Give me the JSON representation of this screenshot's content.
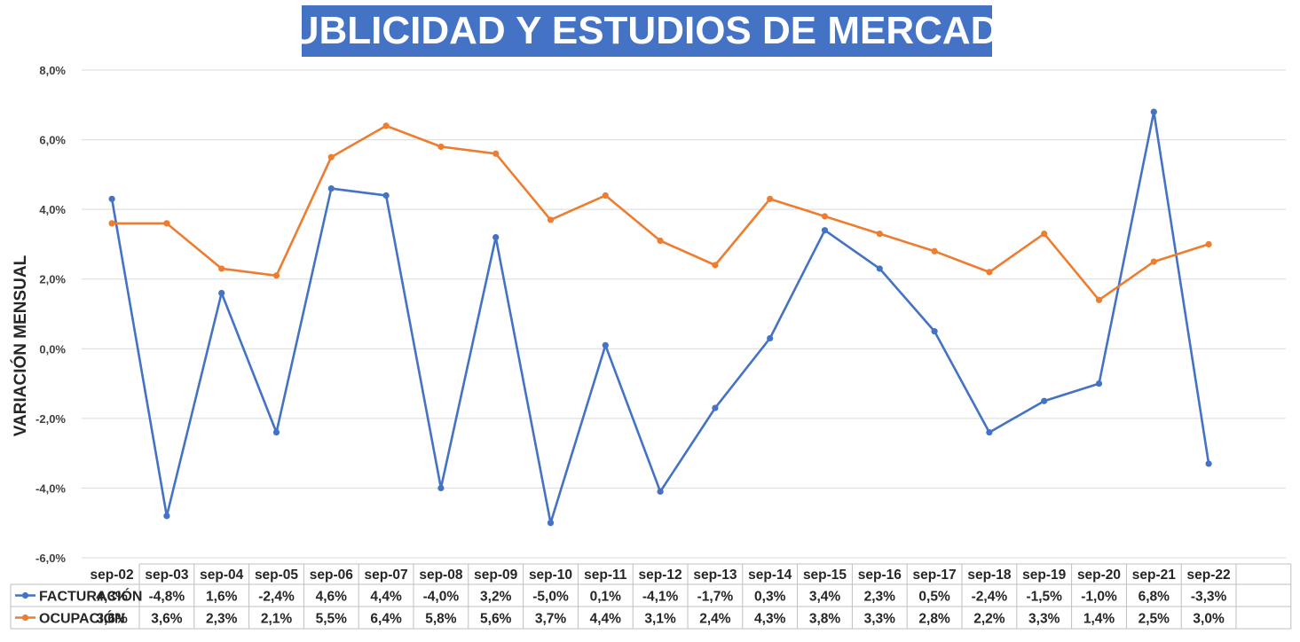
{
  "chart_data": {
    "type": "line",
    "title": "PUBLICIDAD Y ESTUDIOS DE MERCADO",
    "xlabel": "",
    "ylabel": "VARIACIÓN MENSUAL",
    "ylim": [
      -6.0,
      8.0
    ],
    "yticks": [
      "8,0%",
      "6,0%",
      "4,0%",
      "2,0%",
      "0,0%",
      "-2,0%",
      "-4,0%",
      "-6,0%"
    ],
    "ytick_values": [
      8,
      6,
      4,
      2,
      0,
      -2,
      -4,
      -6
    ],
    "grid": true,
    "legend": "data-table-left",
    "categories": [
      "sep-02",
      "sep-03",
      "sep-04",
      "sep-05",
      "sep-06",
      "sep-07",
      "sep-08",
      "sep-09",
      "sep-10",
      "sep-11",
      "sep-12",
      "sep-13",
      "sep-14",
      "sep-15",
      "sep-16",
      "sep-17",
      "sep-18",
      "sep-19",
      "sep-20",
      "sep-21",
      "sep-22"
    ],
    "series": [
      {
        "name": "FACTURACIÓN",
        "color": "#4472c4",
        "values": [
          4.3,
          -4.8,
          1.6,
          -2.4,
          4.6,
          4.4,
          -4.0,
          3.2,
          -5.0,
          0.1,
          -4.1,
          -1.7,
          0.3,
          3.4,
          2.3,
          0.5,
          -2.4,
          -1.5,
          -1.0,
          6.8,
          -3.3
        ],
        "labels": [
          "4,3%",
          "-4,8%",
          "1,6%",
          "-2,4%",
          "4,6%",
          "4,4%",
          "-4,0%",
          "3,2%",
          "-5,0%",
          "0,1%",
          "-4,1%",
          "-1,7%",
          "0,3%",
          "3,4%",
          "2,3%",
          "0,5%",
          "-2,4%",
          "-1,5%",
          "-1,0%",
          "6,8%",
          "-3,3%"
        ]
      },
      {
        "name": "OCUPACIÓN",
        "color": "#ed7d31",
        "values": [
          3.6,
          3.6,
          2.3,
          2.1,
          5.5,
          6.4,
          5.8,
          5.6,
          3.7,
          4.4,
          3.1,
          2.4,
          4.3,
          3.8,
          3.3,
          2.8,
          2.2,
          3.3,
          1.4,
          2.5,
          3.0
        ],
        "labels": [
          "3,6%",
          "3,6%",
          "2,3%",
          "2,1%",
          "5,5%",
          "6,4%",
          "5,8%",
          "5,6%",
          "3,7%",
          "4,4%",
          "3,1%",
          "2,4%",
          "4,3%",
          "3,8%",
          "3,3%",
          "2,8%",
          "2,2%",
          "3,3%",
          "1,4%",
          "2,5%",
          "3,0%"
        ]
      }
    ]
  }
}
